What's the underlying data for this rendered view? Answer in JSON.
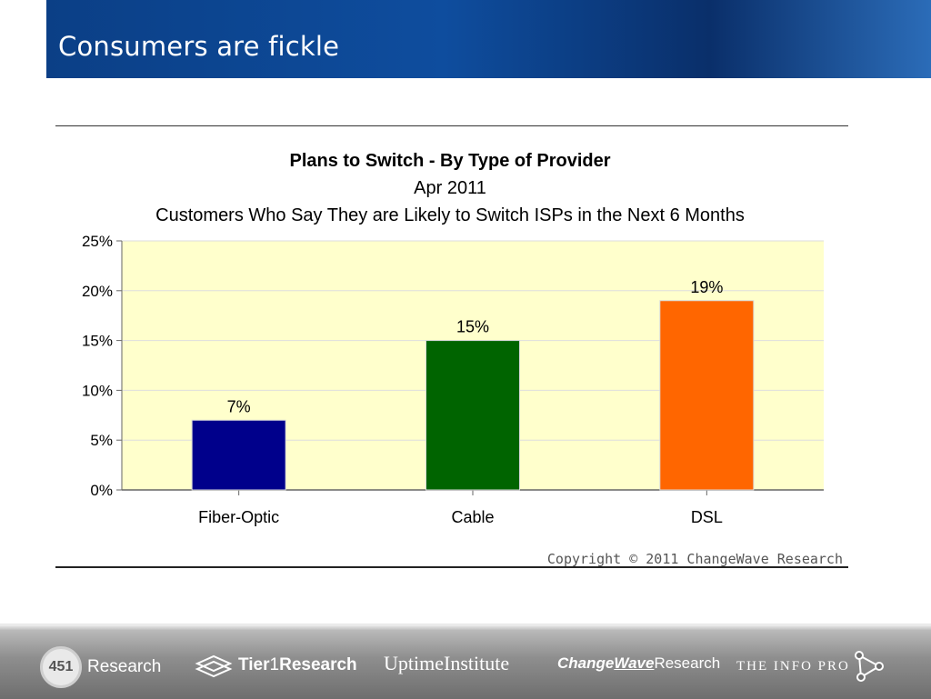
{
  "slide": {
    "title": "Consumers are fickle"
  },
  "chart_data": {
    "type": "bar",
    "title": "Plans to Switch - By Type of Provider",
    "subtitle": "Apr 2011",
    "subtitle2": "Customers Who Say They are Likely to Switch ISPs in the Next 6 Months",
    "categories": [
      "Fiber-Optic",
      "Cable",
      "DSL"
    ],
    "values": [
      7,
      15,
      19
    ],
    "value_labels": [
      "7%",
      "15%",
      "19%"
    ],
    "bar_colors": [
      "#00008b",
      "#006400",
      "#ff6600"
    ],
    "y_ticks": [
      0,
      5,
      10,
      15,
      20,
      25
    ],
    "y_tick_labels": [
      "0%",
      "5%",
      "10%",
      "15%",
      "20%",
      "25%"
    ],
    "ylim": [
      0,
      25
    ],
    "grid": true,
    "plot_background": "#ffffcc",
    "copyright": "Copyright © 2011 ChangeWave Research"
  },
  "footer": {
    "logos": [
      {
        "badge": "451",
        "name": "Research"
      },
      {
        "prefix": "Tier",
        "mid": "1",
        "name": "Research"
      },
      {
        "name": "UptimeInstitute"
      },
      {
        "prefix": "Change",
        "mid": "Wave",
        "name": "Research"
      },
      {
        "name": "THE INFO PRO"
      }
    ]
  }
}
